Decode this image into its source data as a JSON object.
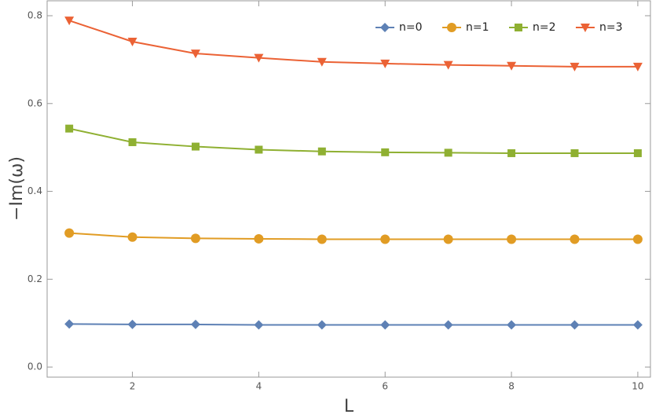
{
  "chart_data": {
    "type": "line",
    "x_label": "L",
    "y_label": "−Im(ω)",
    "x": [
      1,
      2,
      3,
      4,
      5,
      6,
      7,
      8,
      9,
      10
    ],
    "series": [
      {
        "name": "n=0",
        "color": "#5e81b5",
        "marker": "diamond",
        "values": [
          0.098,
          0.097,
          0.097,
          0.096,
          0.096,
          0.096,
          0.096,
          0.096,
          0.096,
          0.096
        ]
      },
      {
        "name": "n=1",
        "color": "#e19c24",
        "marker": "circle",
        "values": [
          0.305,
          0.296,
          0.293,
          0.292,
          0.291,
          0.291,
          0.291,
          0.291,
          0.291,
          0.291
        ]
      },
      {
        "name": "n=2",
        "color": "#8fb032",
        "marker": "square",
        "values": [
          0.543,
          0.512,
          0.502,
          0.495,
          0.491,
          0.489,
          0.488,
          0.487,
          0.487,
          0.487
        ]
      },
      {
        "name": "n=3",
        "color": "#eb6235",
        "marker": "triangle-down",
        "values": [
          0.789,
          0.741,
          0.714,
          0.704,
          0.695,
          0.691,
          0.688,
          0.686,
          0.684,
          0.684
        ]
      }
    ],
    "xlim": [
      0.65,
      10.2
    ],
    "ylim": [
      -0.023,
      0.834
    ],
    "xticks": [
      2,
      4,
      6,
      8,
      10
    ],
    "yticks": [
      {
        "value": 0,
        "label": "0.0"
      },
      0.2,
      0.4,
      0.6,
      0.8
    ],
    "legend": "top-right"
  }
}
